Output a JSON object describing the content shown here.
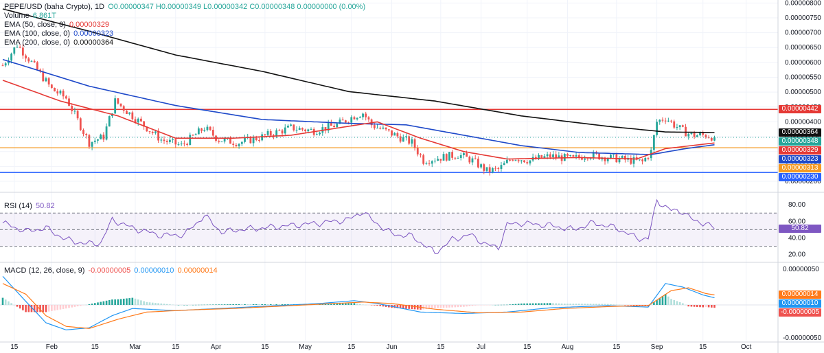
{
  "colors": {
    "up": "#26a69a",
    "down": "#ef5350",
    "ema50": "#e53935",
    "ema100": "#1e49c9",
    "ema200": "#111111",
    "res_line": "#e53935",
    "support_line": "#f59a23",
    "low_line": "#2962ff",
    "rsi": "#7e57c2",
    "macd": "#2196f3",
    "signal": "#ff7a1a"
  },
  "legend": {
    "symbol": "PEPE/USD (baha Crypto), 1D",
    "ohlc": "O0.00000347 H0.00000349 L0.00000342 C0.00000348 0.00000000 (0.00%)",
    "volume_label": "Volume",
    "volume_value": "6.861T",
    "ema50_label": "EMA (50, close, 0)",
    "ema50_value": "0.00000329",
    "ema100_label": "EMA (100, close, 0)",
    "ema100_value": "0.00000323",
    "ema200_label": "EMA (200, close, 0)",
    "ema200_value": "0.00000364"
  },
  "rsi_legend": {
    "label": "RSI (14)",
    "value": "50.82"
  },
  "macd_legend": {
    "label": "MACD (12, 26, close, 9)",
    "hist": "-0.00000005",
    "macd": "0.00000010",
    "signal": "0.00000014"
  },
  "price_badges": [
    {
      "value": "0.00000442",
      "price": 4.42e-06,
      "color": "#e53935"
    },
    {
      "value": "0.00000364",
      "price": 3.64e-06,
      "color": "#111111"
    },
    {
      "value": "0.00000348",
      "price": 3.48e-06,
      "color": "#26a69a"
    },
    {
      "value": "0.00000329",
      "price": 3.29e-06,
      "color": "#e53935"
    },
    {
      "value": "0.00000323",
      "price": 3.23e-06,
      "color": "#1e49c9"
    },
    {
      "value": "0.00000313",
      "price": 3.13e-06,
      "color": "#f59a23"
    },
    {
      "value": "0.00000230",
      "price": 2.3e-06,
      "color": "#2962ff"
    }
  ],
  "rsi_badge": {
    "value": "50.82"
  },
  "macd_badges": [
    {
      "value": "0.00000014",
      "level": 1.4e-07,
      "color": "#ff7a1a"
    },
    {
      "value": "0.00000010",
      "level": 1e-07,
      "color": "#2196f3"
    },
    {
      "value": "-0.00000005",
      "level": -5e-08,
      "color": "#ef5350"
    }
  ],
  "chart_data": {
    "type": "candlestick",
    "title": "PEPE/USD (baha Crypto), 1D",
    "price_axis": {
      "ticks": [
        "0.00000800",
        "0.00000750",
        "0.00000700",
        "0.00000650",
        "0.00000600",
        "0.00000550",
        "0.00000500",
        "0.00000450",
        "0.00000400",
        "0.00000350",
        "0.00000300",
        "0.00000250",
        "0.00000200"
      ],
      "ylim": [
        2e-06,
        8.1e-06
      ]
    },
    "time_axis": [
      "15",
      "Feb",
      "15",
      "Mar",
      "15",
      "Apr",
      "15",
      "May",
      "15",
      "Jun",
      "15",
      "Jul",
      "15",
      "Aug",
      "15",
      "Sep",
      "15",
      "Oct"
    ],
    "horizontal_levels": [
      {
        "name": "resistance",
        "price": 4.42e-06
      },
      {
        "name": "support",
        "price": 3.13e-06
      },
      {
        "name": "low",
        "price": 2.3e-06
      }
    ],
    "close_keypoints": [
      {
        "day": 0,
        "close": 5.9e-06
      },
      {
        "day": 5,
        "close": 6.6e-06
      },
      {
        "day": 10,
        "close": 6e-06
      },
      {
        "day": 17,
        "close": 5.1e-06
      },
      {
        "day": 22,
        "close": 4.8e-06
      },
      {
        "day": 30,
        "close": 3.3e-06
      },
      {
        "day": 35,
        "close": 3.5e-06
      },
      {
        "day": 39,
        "close": 4.7e-06
      },
      {
        "day": 45,
        "close": 4.2e-06
      },
      {
        "day": 55,
        "close": 3.4e-06
      },
      {
        "day": 62,
        "close": 3.2e-06
      },
      {
        "day": 70,
        "close": 3.8e-06
      },
      {
        "day": 75,
        "close": 3.4e-06
      },
      {
        "day": 82,
        "close": 3.3e-06
      },
      {
        "day": 90,
        "close": 3.5e-06
      },
      {
        "day": 100,
        "close": 3.8e-06
      },
      {
        "day": 108,
        "close": 3.7e-06
      },
      {
        "day": 116,
        "close": 3.9e-06
      },
      {
        "day": 122,
        "close": 4.2e-06
      },
      {
        "day": 125,
        "close": 4.3e-06
      },
      {
        "day": 128,
        "close": 3.9e-06
      },
      {
        "day": 135,
        "close": 3.6e-06
      },
      {
        "day": 142,
        "close": 3.3e-06
      },
      {
        "day": 146,
        "close": 2.7e-06
      },
      {
        "day": 152,
        "close": 2.8e-06
      },
      {
        "day": 158,
        "close": 2.9e-06
      },
      {
        "day": 163,
        "close": 2.7e-06
      },
      {
        "day": 168,
        "close": 2.35e-06
      },
      {
        "day": 172,
        "close": 2.4e-06
      },
      {
        "day": 177,
        "close": 2.8e-06
      },
      {
        "day": 183,
        "close": 2.7e-06
      },
      {
        "day": 190,
        "close": 2.85e-06
      },
      {
        "day": 198,
        "close": 2.75e-06
      },
      {
        "day": 203,
        "close": 2.9e-06
      },
      {
        "day": 210,
        "close": 2.8e-06
      },
      {
        "day": 218,
        "close": 2.7e-06
      },
      {
        "day": 222,
        "close": 2.65e-06
      },
      {
        "day": 225,
        "close": 3e-06
      },
      {
        "day": 227,
        "close": 4e-06
      },
      {
        "day": 230,
        "close": 4.15e-06
      },
      {
        "day": 233,
        "close": 3.9e-06
      },
      {
        "day": 236,
        "close": 3.7e-06
      },
      {
        "day": 239,
        "close": 3.55e-06
      },
      {
        "day": 244,
        "close": 3.55e-06
      },
      {
        "day": 247,
        "close": 3.48e-06
      }
    ],
    "ema_keypoints": {
      "ema200": [
        [
          0,
          7.8e-06
        ],
        [
          30,
          7.05e-06
        ],
        [
          60,
          6.25e-06
        ],
        [
          90,
          5.7e-06
        ],
        [
          120,
          5.02e-06
        ],
        [
          150,
          4.7e-06
        ],
        [
          180,
          4.2e-06
        ],
        [
          210,
          3.85e-06
        ],
        [
          230,
          3.66e-06
        ],
        [
          247,
          3.64e-06
        ]
      ],
      "ema100": [
        [
          0,
          6.1e-06
        ],
        [
          30,
          5.2e-06
        ],
        [
          60,
          4.55e-06
        ],
        [
          90,
          4.08e-06
        ],
        [
          120,
          3.95e-06
        ],
        [
          140,
          3.9e-06
        ],
        [
          160,
          3.55e-06
        ],
        [
          180,
          3.2e-06
        ],
        [
          200,
          2.97e-06
        ],
        [
          225,
          2.9e-06
        ],
        [
          237,
          3.1e-06
        ],
        [
          247,
          3.23e-06
        ]
      ],
      "ema50": [
        [
          0,
          5.4e-06
        ],
        [
          20,
          4.7e-06
        ],
        [
          40,
          4.2e-06
        ],
        [
          60,
          3.45e-06
        ],
        [
          80,
          3.45e-06
        ],
        [
          100,
          3.55e-06
        ],
        [
          120,
          3.85e-06
        ],
        [
          130,
          4e-06
        ],
        [
          145,
          3.45e-06
        ],
        [
          160,
          3e-06
        ],
        [
          175,
          2.75e-06
        ],
        [
          200,
          2.8e-06
        ],
        [
          220,
          2.75e-06
        ],
        [
          230,
          3.1e-06
        ],
        [
          247,
          3.29e-06
        ]
      ]
    },
    "rsi": {
      "levels": [
        70,
        50,
        30
      ],
      "ticks": [
        "80.00",
        "60.00",
        "40.00",
        "20.00"
      ],
      "keypoints": [
        [
          0,
          58
        ],
        [
          8,
          48
        ],
        [
          15,
          52
        ],
        [
          22,
          38
        ],
        [
          29,
          33
        ],
        [
          34,
          34
        ],
        [
          38,
          62
        ],
        [
          45,
          52
        ],
        [
          55,
          43
        ],
        [
          63,
          44
        ],
        [
          70,
          67
        ],
        [
          76,
          47
        ],
        [
          82,
          50
        ],
        [
          90,
          52
        ],
        [
          100,
          55
        ],
        [
          110,
          58
        ],
        [
          120,
          62
        ],
        [
          125,
          72
        ],
        [
          128,
          62
        ],
        [
          135,
          45
        ],
        [
          142,
          42
        ],
        [
          147,
          30
        ],
        [
          150,
          22
        ],
        [
          156,
          38
        ],
        [
          162,
          44
        ],
        [
          168,
          32
        ],
        [
          172,
          28
        ],
        [
          175,
          56
        ],
        [
          180,
          58
        ],
        [
          190,
          55
        ],
        [
          198,
          50
        ],
        [
          205,
          58
        ],
        [
          213,
          52
        ],
        [
          220,
          40
        ],
        [
          224,
          39
        ],
        [
          227,
          85
        ],
        [
          232,
          73
        ],
        [
          236,
          72
        ],
        [
          240,
          60
        ],
        [
          244,
          58
        ],
        [
          247,
          50.82
        ]
      ]
    },
    "macd": {
      "ticks": [
        "0.00000050",
        "-0.00000050"
      ],
      "macd_keypoints": [
        [
          0,
          4e-07
        ],
        [
          8,
          5e-08
        ],
        [
          15,
          -2.5e-07
        ],
        [
          22,
          -3.5e-07
        ],
        [
          30,
          -3.2e-07
        ],
        [
          38,
          -1.5e-07
        ],
        [
          45,
          -5e-08
        ],
        [
          60,
          -8e-08
        ],
        [
          75,
          -5e-08
        ],
        [
          90,
          -2e-08
        ],
        [
          110,
          2e-08
        ],
        [
          122,
          6e-08
        ],
        [
          130,
          2e-08
        ],
        [
          145,
          -1e-07
        ],
        [
          160,
          -1.2e-07
        ],
        [
          175,
          -1e-07
        ],
        [
          190,
          -4e-08
        ],
        [
          210,
          -1e-08
        ],
        [
          224,
          -3e-08
        ],
        [
          230,
          3e-07
        ],
        [
          236,
          2.5e-07
        ],
        [
          243,
          1.4e-07
        ],
        [
          247,
          1e-07
        ]
      ],
      "signal_keypoints": [
        [
          0,
          3e-07
        ],
        [
          8,
          1.5e-07
        ],
        [
          15,
          -1.5e-07
        ],
        [
          22,
          -3e-07
        ],
        [
          30,
          -3.3e-07
        ],
        [
          40,
          -2e-07
        ],
        [
          50,
          -1e-07
        ],
        [
          65,
          -7e-08
        ],
        [
          80,
          -5e-08
        ],
        [
          95,
          -2e-08
        ],
        [
          110,
          1e-08
        ],
        [
          125,
          4e-08
        ],
        [
          135,
          2e-08
        ],
        [
          150,
          -6e-08
        ],
        [
          165,
          -1.1e-07
        ],
        [
          180,
          -1e-07
        ],
        [
          195,
          -5e-08
        ],
        [
          212,
          -2e-08
        ],
        [
          224,
          -1e-08
        ],
        [
          232,
          2e-07
        ],
        [
          238,
          2.4e-07
        ],
        [
          244,
          1.6e-07
        ],
        [
          247,
          1.4e-07
        ]
      ]
    }
  }
}
